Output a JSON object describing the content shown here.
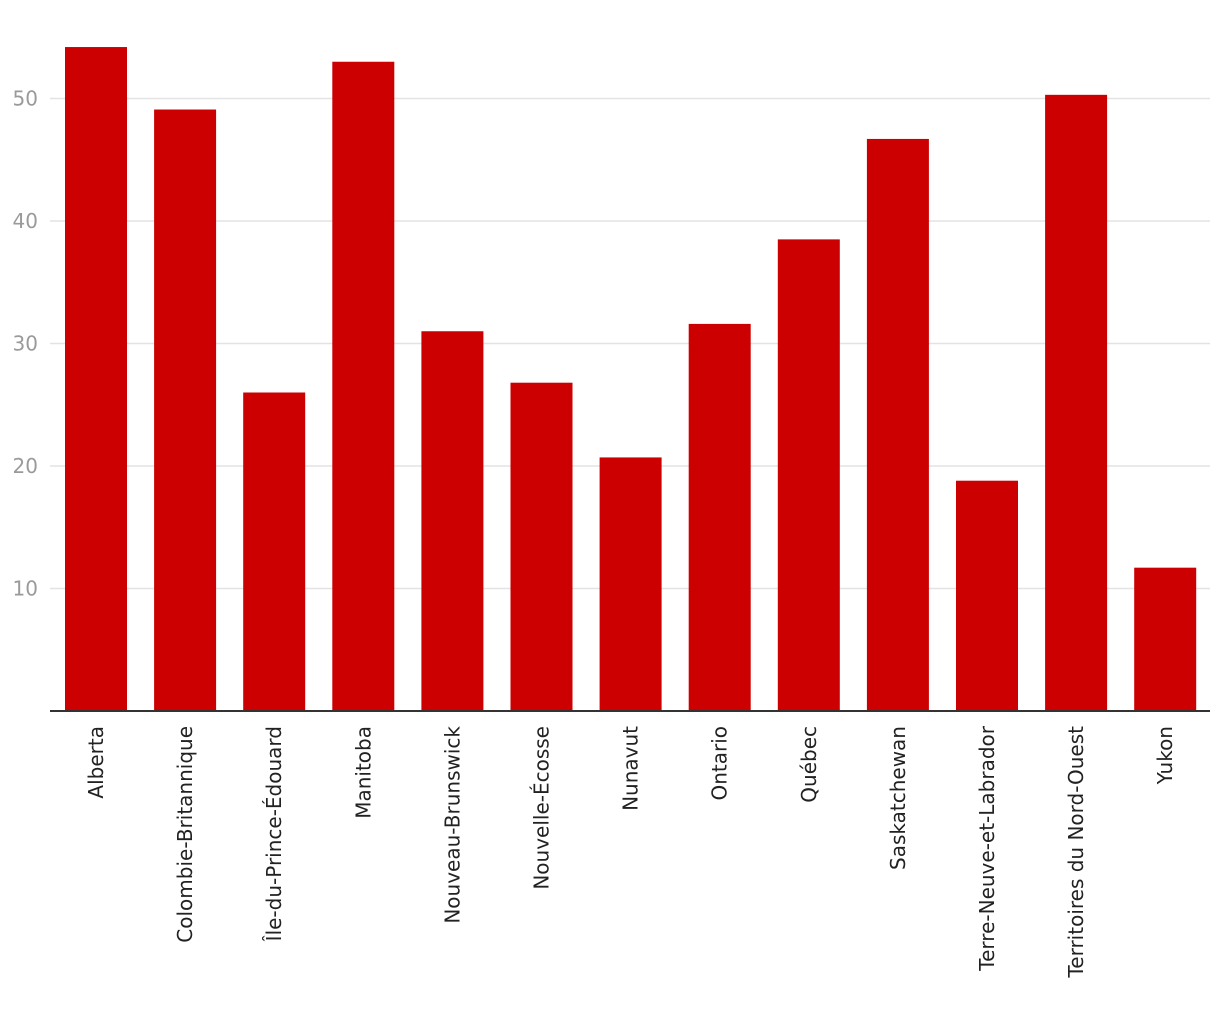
{
  "chart_data": {
    "type": "bar",
    "title": "",
    "xlabel": "",
    "ylabel": "",
    "categories": [
      "Alberta",
      "Colombie-Britannique",
      "Île-du-Prince-Édouard",
      "Manitoba",
      "Nouveau-Brunswick",
      "Nouvelle-Écosse",
      "Nunavut",
      "Ontario",
      "Québec",
      "Saskatchewan",
      "Terre-Neuve-et-Labrador",
      "Territoires du Nord-Ouest",
      "Yukon"
    ],
    "values": [
      54.2,
      49.1,
      26.0,
      53.0,
      31.0,
      26.8,
      20.7,
      31.6,
      38.5,
      46.7,
      18.8,
      50.3,
      11.7
    ],
    "ylim": [
      0,
      55
    ],
    "yticks": [
      10,
      20,
      30,
      40,
      50
    ],
    "grid": true,
    "legend": "none",
    "bar_color": "#cc0000"
  }
}
